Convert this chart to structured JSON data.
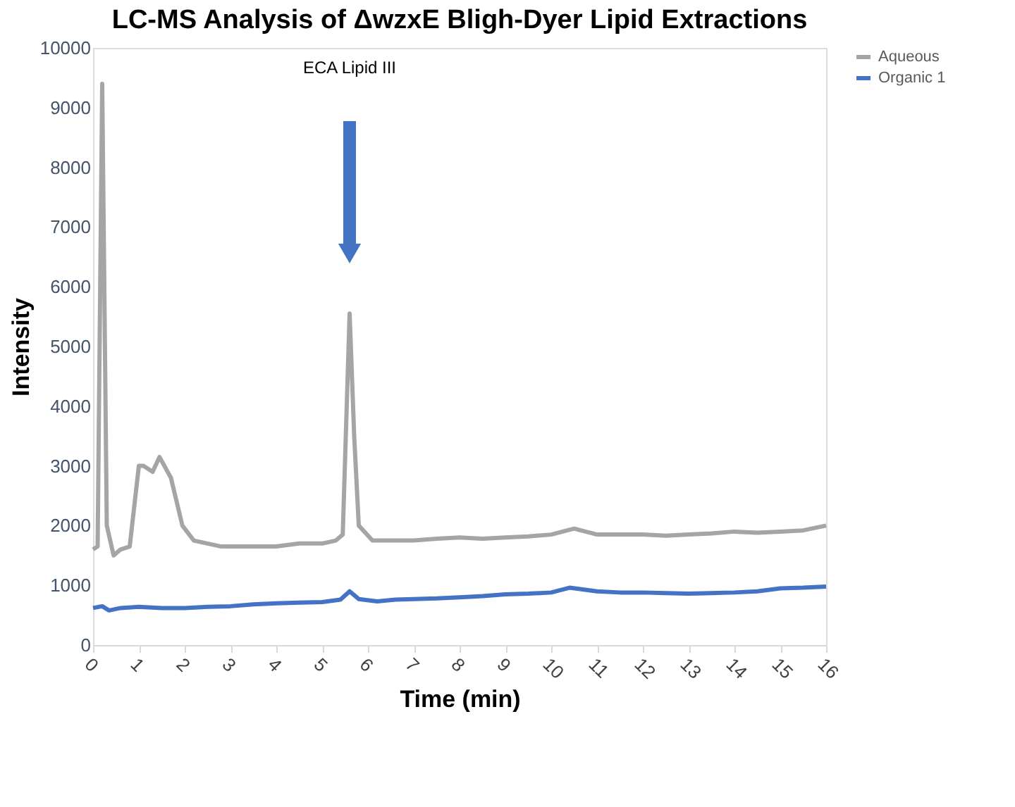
{
  "chart_data": {
    "type": "line",
    "title": "LC-MS Analysis of ΔwzxE Bligh-Dyer Lipid Extractions",
    "xlabel": "Time (min)",
    "ylabel": "Intensity",
    "xlim": [
      0,
      16
    ],
    "xticks": [
      0,
      1,
      2,
      3,
      4,
      5,
      6,
      7,
      8,
      9,
      10,
      11,
      12,
      13,
      14,
      15,
      16
    ],
    "ylim": [
      0,
      10000
    ],
    "yticks": [
      0,
      1000,
      2000,
      3000,
      4000,
      5000,
      6000,
      7000,
      8000,
      9000,
      10000
    ],
    "grid": false,
    "legend": "right",
    "marker": "none",
    "line_style": "solid",
    "annotations": [
      "ECA Lipid III"
    ],
    "series": [
      {
        "name": "Aqueous",
        "color": "#a5a5a5",
        "x": [
          0,
          0.1,
          0.2,
          0.3,
          0.45,
          0.6,
          0.8,
          1.0,
          1.1,
          1.3,
          1.45,
          1.7,
          1.95,
          2.2,
          2.8,
          3.5,
          4,
          4.5,
          5,
          5.3,
          5.45,
          5.6,
          5.7,
          5.8,
          6.1,
          6.5,
          7,
          7.5,
          8,
          8.5,
          9,
          9.5,
          10,
          10.5,
          11,
          11.5,
          12,
          12.5,
          13,
          13.5,
          14,
          14.5,
          15,
          15.5,
          16
        ],
        "values": [
          1600,
          1650,
          9400,
          2000,
          1500,
          1600,
          1650,
          3000,
          3000,
          2900,
          3150,
          2800,
          2000,
          1750,
          1650,
          1650,
          1650,
          1700,
          1700,
          1750,
          1850,
          5550,
          3500,
          2000,
          1750,
          1750,
          1750,
          1780,
          1800,
          1780,
          1800,
          1820,
          1850,
          1950,
          1850,
          1850,
          1850,
          1830,
          1850,
          1870,
          1900,
          1880,
          1900,
          1920,
          2000
        ]
      },
      {
        "name": "Organic 1",
        "color": "#4472c4",
        "x": [
          0,
          0.2,
          0.35,
          0.6,
          1,
          1.5,
          2,
          2.5,
          3,
          3.5,
          4,
          4.5,
          5,
          5.4,
          5.6,
          5.8,
          6.2,
          6.6,
          7,
          7.5,
          8,
          8.5,
          9,
          9.5,
          10,
          10.4,
          10.8,
          11,
          11.5,
          12,
          12.5,
          13,
          13.5,
          14,
          14.5,
          15,
          15.5,
          16
        ],
        "values": [
          620,
          650,
          580,
          620,
          640,
          620,
          620,
          640,
          650,
          680,
          700,
          710,
          720,
          760,
          900,
          770,
          730,
          760,
          770,
          780,
          800,
          820,
          850,
          860,
          880,
          960,
          920,
          900,
          880,
          880,
          870,
          860,
          870,
          880,
          900,
          950,
          960,
          980
        ]
      }
    ]
  }
}
